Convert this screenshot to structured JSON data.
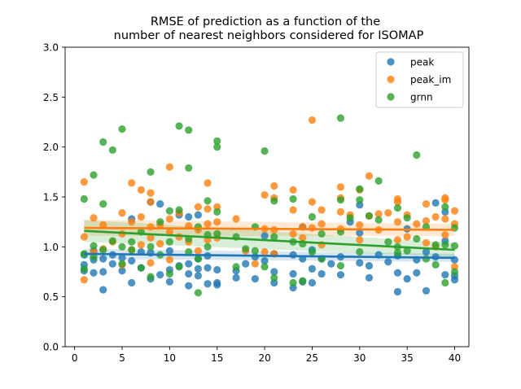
{
  "chart_data": {
    "type": "scatter",
    "title_lines": [
      "RMSE of prediction as a function of the",
      "number of nearest neighbors considered for ISOMAP"
    ],
    "xlabel": "",
    "ylabel": "",
    "xlim": [
      -1,
      41.5
    ],
    "ylim": [
      0,
      3
    ],
    "x_ticks": [
      0,
      5,
      10,
      15,
      20,
      25,
      30,
      35,
      40
    ],
    "y_ticks": [
      0.0,
      0.5,
      1.0,
      1.5,
      2.0,
      2.5,
      3.0
    ],
    "x_tick_labels": [
      "0",
      "5",
      "10",
      "15",
      "20",
      "25",
      "30",
      "35",
      "40"
    ],
    "y_tick_labels": [
      "0.0",
      "0.5",
      "1.0",
      "1.5",
      "2.0",
      "2.5",
      "3.0"
    ],
    "grid": false,
    "legend_position": "top-right",
    "series": [
      {
        "name": "peak",
        "color": "#1f77b4",
        "points": [
          [
            1,
            0.82
          ],
          [
            1,
            0.76
          ],
          [
            1,
            0.92
          ],
          [
            2,
            0.74
          ],
          [
            2,
            0.87
          ],
          [
            2,
            0.96
          ],
          [
            3,
            0.57
          ],
          [
            3,
            0.75
          ],
          [
            3,
            0.88
          ],
          [
            4,
            0.83
          ],
          [
            4,
            0.92
          ],
          [
            5,
            0.76
          ],
          [
            5,
            0.89
          ],
          [
            6,
            0.64
          ],
          [
            6,
            0.86
          ],
          [
            6,
            1.28
          ],
          [
            7,
            0.79
          ],
          [
            7,
            0.95
          ],
          [
            8,
            0.68
          ],
          [
            8,
            0.94
          ],
          [
            8,
            1.45
          ],
          [
            9,
            0.72
          ],
          [
            9,
            1.43
          ],
          [
            10,
            0.65
          ],
          [
            10,
            0.77
          ],
          [
            10,
            0.96
          ],
          [
            11,
            0.81
          ],
          [
            11,
            1.32
          ],
          [
            12,
            0.61
          ],
          [
            12,
            0.73
          ],
          [
            12,
            0.83
          ],
          [
            12,
            1.3
          ],
          [
            13,
            0.78
          ],
          [
            13,
            0.88
          ],
          [
            13,
            1.32
          ],
          [
            13,
            0.71
          ],
          [
            14,
            0.63
          ],
          [
            14,
            0.79
          ],
          [
            14,
            0.91
          ],
          [
            15,
            0.64
          ],
          [
            15,
            0.77
          ],
          [
            15,
            0.62
          ],
          [
            17,
            0.69
          ],
          [
            17,
            0.76
          ],
          [
            18,
            0.83
          ],
          [
            19,
            0.68
          ],
          [
            19,
            0.9
          ],
          [
            20,
            0.86
          ],
          [
            20,
            1.11
          ],
          [
            21,
            0.64
          ],
          [
            21,
            0.75
          ],
          [
            21,
            0.93
          ],
          [
            23,
            0.59
          ],
          [
            23,
            0.73
          ],
          [
            23,
            0.92
          ],
          [
            24,
            0.65
          ],
          [
            24,
            0.88
          ],
          [
            24,
            1.2
          ],
          [
            25,
            0.64
          ],
          [
            25,
            0.78
          ],
          [
            25,
            0.97
          ],
          [
            26,
            0.73
          ],
          [
            26,
            0.88
          ],
          [
            27,
            0.83
          ],
          [
            28,
            0.72
          ],
          [
            28,
            0.9
          ],
          [
            29,
            1.25
          ],
          [
            30,
            0.84
          ],
          [
            30,
            1.14
          ],
          [
            30,
            1.42
          ],
          [
            31,
            0.69
          ],
          [
            31,
            0.81
          ],
          [
            32,
            0.92
          ],
          [
            33,
            0.85
          ],
          [
            34,
            0.55
          ],
          [
            34,
            0.74
          ],
          [
            34,
            0.91
          ],
          [
            35,
            0.68
          ],
          [
            35,
            1.18
          ],
          [
            36,
            0.74
          ],
          [
            36,
            0.87
          ],
          [
            37,
            0.56
          ],
          [
            37,
            0.95
          ],
          [
            38,
            1.44
          ],
          [
            38,
            0.9
          ],
          [
            39,
            0.72
          ],
          [
            39,
            1.06
          ],
          [
            39,
            1.35
          ],
          [
            40,
            0.67
          ],
          [
            40,
            0.71
          ],
          [
            40,
            0.87
          ]
        ]
      },
      {
        "name": "peak_im",
        "color": "#ff7f0e",
        "points": [
          [
            1,
            1.65
          ],
          [
            1,
            1.1
          ],
          [
            1,
            0.67
          ],
          [
            2,
            1.29
          ],
          [
            2,
            0.95
          ],
          [
            3,
            1.22
          ],
          [
            3,
            0.98
          ],
          [
            4,
            1.05
          ],
          [
            5,
            1.34
          ],
          [
            5,
            1.13
          ],
          [
            5,
            0.82
          ],
          [
            6,
            1.64
          ],
          [
            6,
            1.25
          ],
          [
            6,
            0.97
          ],
          [
            7,
            1.57
          ],
          [
            7,
            1.3
          ],
          [
            7,
            1.02
          ],
          [
            8,
            1.54
          ],
          [
            8,
            1.45
          ],
          [
            8,
            1.2
          ],
          [
            8,
            1.09
          ],
          [
            8,
            0.84
          ],
          [
            9,
            1.22
          ],
          [
            9,
            1.03
          ],
          [
            10,
            1.8
          ],
          [
            10,
            1.28
          ],
          [
            10,
            1.15
          ],
          [
            10,
            0.87
          ],
          [
            11,
            1.34
          ],
          [
            11,
            1.1
          ],
          [
            12,
            1.21
          ],
          [
            12,
            1.05
          ],
          [
            13,
            1.4
          ],
          [
            13,
            1.17
          ],
          [
            13,
            0.96
          ],
          [
            14,
            1.64
          ],
          [
            14,
            1.38
          ],
          [
            14,
            1.23
          ],
          [
            14,
            1.07
          ],
          [
            15,
            1.4
          ],
          [
            15,
            1.25
          ],
          [
            15,
            1.09
          ],
          [
            17,
            1.28
          ],
          [
            18,
            0.96
          ],
          [
            19,
            0.83
          ],
          [
            20,
            1.52
          ],
          [
            20,
            1.18
          ],
          [
            20,
            0.95
          ],
          [
            21,
            1.61
          ],
          [
            21,
            1.49
          ],
          [
            21,
            1.17
          ],
          [
            21,
            0.93
          ],
          [
            23,
            1.57
          ],
          [
            23,
            1.37
          ],
          [
            23,
            1.13
          ],
          [
            24,
            1.2
          ],
          [
            24,
            1.09
          ],
          [
            25,
            2.27
          ],
          [
            25,
            1.45
          ],
          [
            25,
            1.19
          ],
          [
            26,
            1.37
          ],
          [
            26,
            1.23
          ],
          [
            26,
            1.02
          ],
          [
            28,
            1.6
          ],
          [
            28,
            1.49
          ],
          [
            28,
            1.35
          ],
          [
            28,
            1.18
          ],
          [
            29,
            1.32
          ],
          [
            30,
            1.57
          ],
          [
            30,
            1.22
          ],
          [
            30,
            1.07
          ],
          [
            31,
            1.71
          ],
          [
            31,
            1.31
          ],
          [
            32,
            1.33
          ],
          [
            32,
            1.17
          ],
          [
            33,
            1.34
          ],
          [
            34,
            1.48
          ],
          [
            34,
            1.45
          ],
          [
            34,
            1.25
          ],
          [
            34,
            1.07
          ],
          [
            35,
            1.32
          ],
          [
            35,
            1.1
          ],
          [
            36,
            1.23
          ],
          [
            37,
            1.43
          ],
          [
            37,
            1.26
          ],
          [
            37,
            1.04
          ],
          [
            38,
            1.3
          ],
          [
            38,
            1.0
          ],
          [
            39,
            1.49
          ],
          [
            39,
            1.47
          ],
          [
            39,
            1.28
          ],
          [
            39,
            1.12
          ],
          [
            40,
            1.36
          ],
          [
            40,
            1.23
          ],
          [
            40,
            0.8
          ]
        ]
      },
      {
        "name": "grnn",
        "color": "#2ca02c",
        "points": [
          [
            1,
            1.48
          ],
          [
            1,
            0.93
          ],
          [
            1,
            0.78
          ],
          [
            2,
            1.72
          ],
          [
            2,
            1.01
          ],
          [
            2,
            0.9
          ],
          [
            3,
            2.05
          ],
          [
            3,
            1.43
          ],
          [
            3,
            0.97
          ],
          [
            4,
            1.97
          ],
          [
            4,
            1.06
          ],
          [
            5,
            2.18
          ],
          [
            5,
            1.0
          ],
          [
            5,
            0.83
          ],
          [
            6,
            1.05
          ],
          [
            6,
            0.97
          ],
          [
            7,
            1.15
          ],
          [
            7,
            0.79
          ],
          [
            8,
            1.75
          ],
          [
            8,
            1.0
          ],
          [
            8,
            0.7
          ],
          [
            9,
            1.25
          ],
          [
            9,
            0.92
          ],
          [
            10,
            1.36
          ],
          [
            10,
            1.05
          ],
          [
            10,
            0.73
          ],
          [
            11,
            2.21
          ],
          [
            11,
            1.37
          ],
          [
            11,
            0.8
          ],
          [
            12,
            2.17
          ],
          [
            12,
            1.79
          ],
          [
            12,
            1.08
          ],
          [
            12,
            0.95
          ],
          [
            13,
            1.2
          ],
          [
            13,
            0.88
          ],
          [
            13,
            0.54
          ],
          [
            14,
            1.46
          ],
          [
            14,
            1.12
          ],
          [
            14,
            1.0
          ],
          [
            15,
            2.06
          ],
          [
            15,
            2.0
          ],
          [
            15,
            1.35
          ],
          [
            15,
            1.13
          ],
          [
            17,
            1.1
          ],
          [
            17,
            0.8
          ],
          [
            18,
            0.98
          ],
          [
            19,
            1.2
          ],
          [
            19,
            0.96
          ],
          [
            20,
            1.96
          ],
          [
            20,
            0.8
          ],
          [
            21,
            1.46
          ],
          [
            21,
            1.1
          ],
          [
            21,
            0.69
          ],
          [
            23,
            1.48
          ],
          [
            23,
            1.05
          ],
          [
            23,
            0.64
          ],
          [
            24,
            1.03
          ],
          [
            24,
            0.66
          ],
          [
            25,
            1.3
          ],
          [
            25,
            0.95
          ],
          [
            26,
            1.13
          ],
          [
            26,
            0.88
          ],
          [
            28,
            2.29
          ],
          [
            28,
            1.47
          ],
          [
            28,
            1.15
          ],
          [
            28,
            0.81
          ],
          [
            29,
            1.29
          ],
          [
            30,
            1.58
          ],
          [
            30,
            1.47
          ],
          [
            30,
            0.95
          ],
          [
            31,
            1.31
          ],
          [
            32,
            1.66
          ],
          [
            32,
            1.27
          ],
          [
            33,
            1.05
          ],
          [
            34,
            1.39
          ],
          [
            34,
            1.0
          ],
          [
            34,
            0.94
          ],
          [
            35,
            1.29
          ],
          [
            35,
            0.96
          ],
          [
            36,
            1.92
          ],
          [
            36,
            1.08
          ],
          [
            37,
            1.2
          ],
          [
            37,
            0.88
          ],
          [
            38,
            1.02
          ],
          [
            38,
            0.82
          ],
          [
            39,
            1.4
          ],
          [
            39,
            1.02
          ],
          [
            39,
            0.64
          ],
          [
            40,
            1.19
          ],
          [
            40,
            1.01
          ],
          [
            40,
            0.75
          ]
        ]
      }
    ],
    "regression_lines": [
      {
        "series": "peak",
        "x": [
          1,
          40
        ],
        "y": [
          0.93,
          0.89
        ],
        "ci": [
          0.05,
          0.04
        ]
      },
      {
        "series": "peak_im",
        "x": [
          1,
          40
        ],
        "y": [
          1.19,
          1.17
        ],
        "ci": [
          0.08,
          0.06
        ]
      },
      {
        "series": "grnn",
        "x": [
          1,
          40
        ],
        "y": [
          1.16,
          0.97
        ],
        "ci": [
          0.11,
          0.07
        ]
      }
    ]
  }
}
